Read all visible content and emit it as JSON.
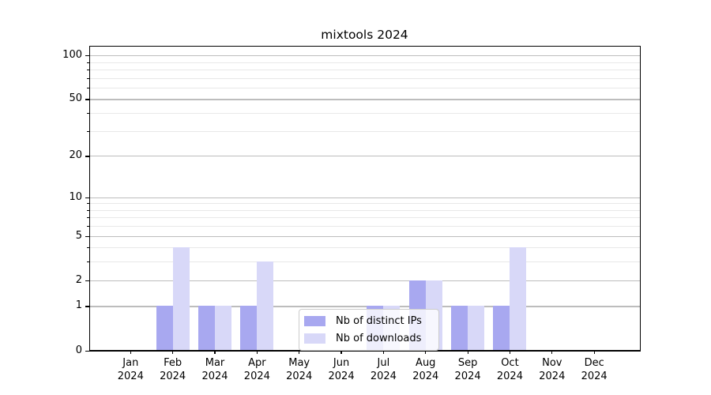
{
  "title": "mixtools 2024",
  "colors": {
    "bar_ips": "#a8a8f0",
    "bar_downloads": "#d8d8f8",
    "grid_major": "#bdbdbd",
    "grid_minor": "#e8e8e8",
    "axis": "#000000",
    "legend_border": "#cccccc"
  },
  "legend": {
    "items": [
      {
        "label": "Nb of distinct IPs"
      },
      {
        "label": "Nb of downloads"
      }
    ]
  },
  "chart_data": {
    "type": "bar",
    "title": "mixtools 2024",
    "categories": [
      "Jan",
      "Feb",
      "Mar",
      "Apr",
      "May",
      "Jun",
      "Jul",
      "Aug",
      "Sep",
      "Oct",
      "Nov",
      "Dec"
    ],
    "category_year_line": "2024",
    "series": [
      {
        "name": "Nb of distinct IPs",
        "color": "#a8a8f0",
        "values": [
          0,
          1,
          1,
          1,
          0,
          0,
          1,
          2,
          1,
          1,
          0,
          0
        ]
      },
      {
        "name": "Nb of downloads",
        "color": "#d8d8f8",
        "values": [
          0,
          4,
          1,
          3,
          0,
          0,
          1,
          2,
          1,
          4,
          0,
          0
        ]
      }
    ],
    "xlabel": "",
    "ylabel": "",
    "y_scale": "log1p",
    "y_ticks": [
      0,
      1,
      2,
      5,
      10,
      20,
      50,
      100
    ],
    "y_minor_ticks": [
      3,
      4,
      6,
      7,
      8,
      9,
      30,
      40,
      60,
      70,
      80,
      90
    ],
    "ylim": [
      0,
      115.7
    ],
    "grid": "both",
    "legend_position": "bottom-center"
  }
}
